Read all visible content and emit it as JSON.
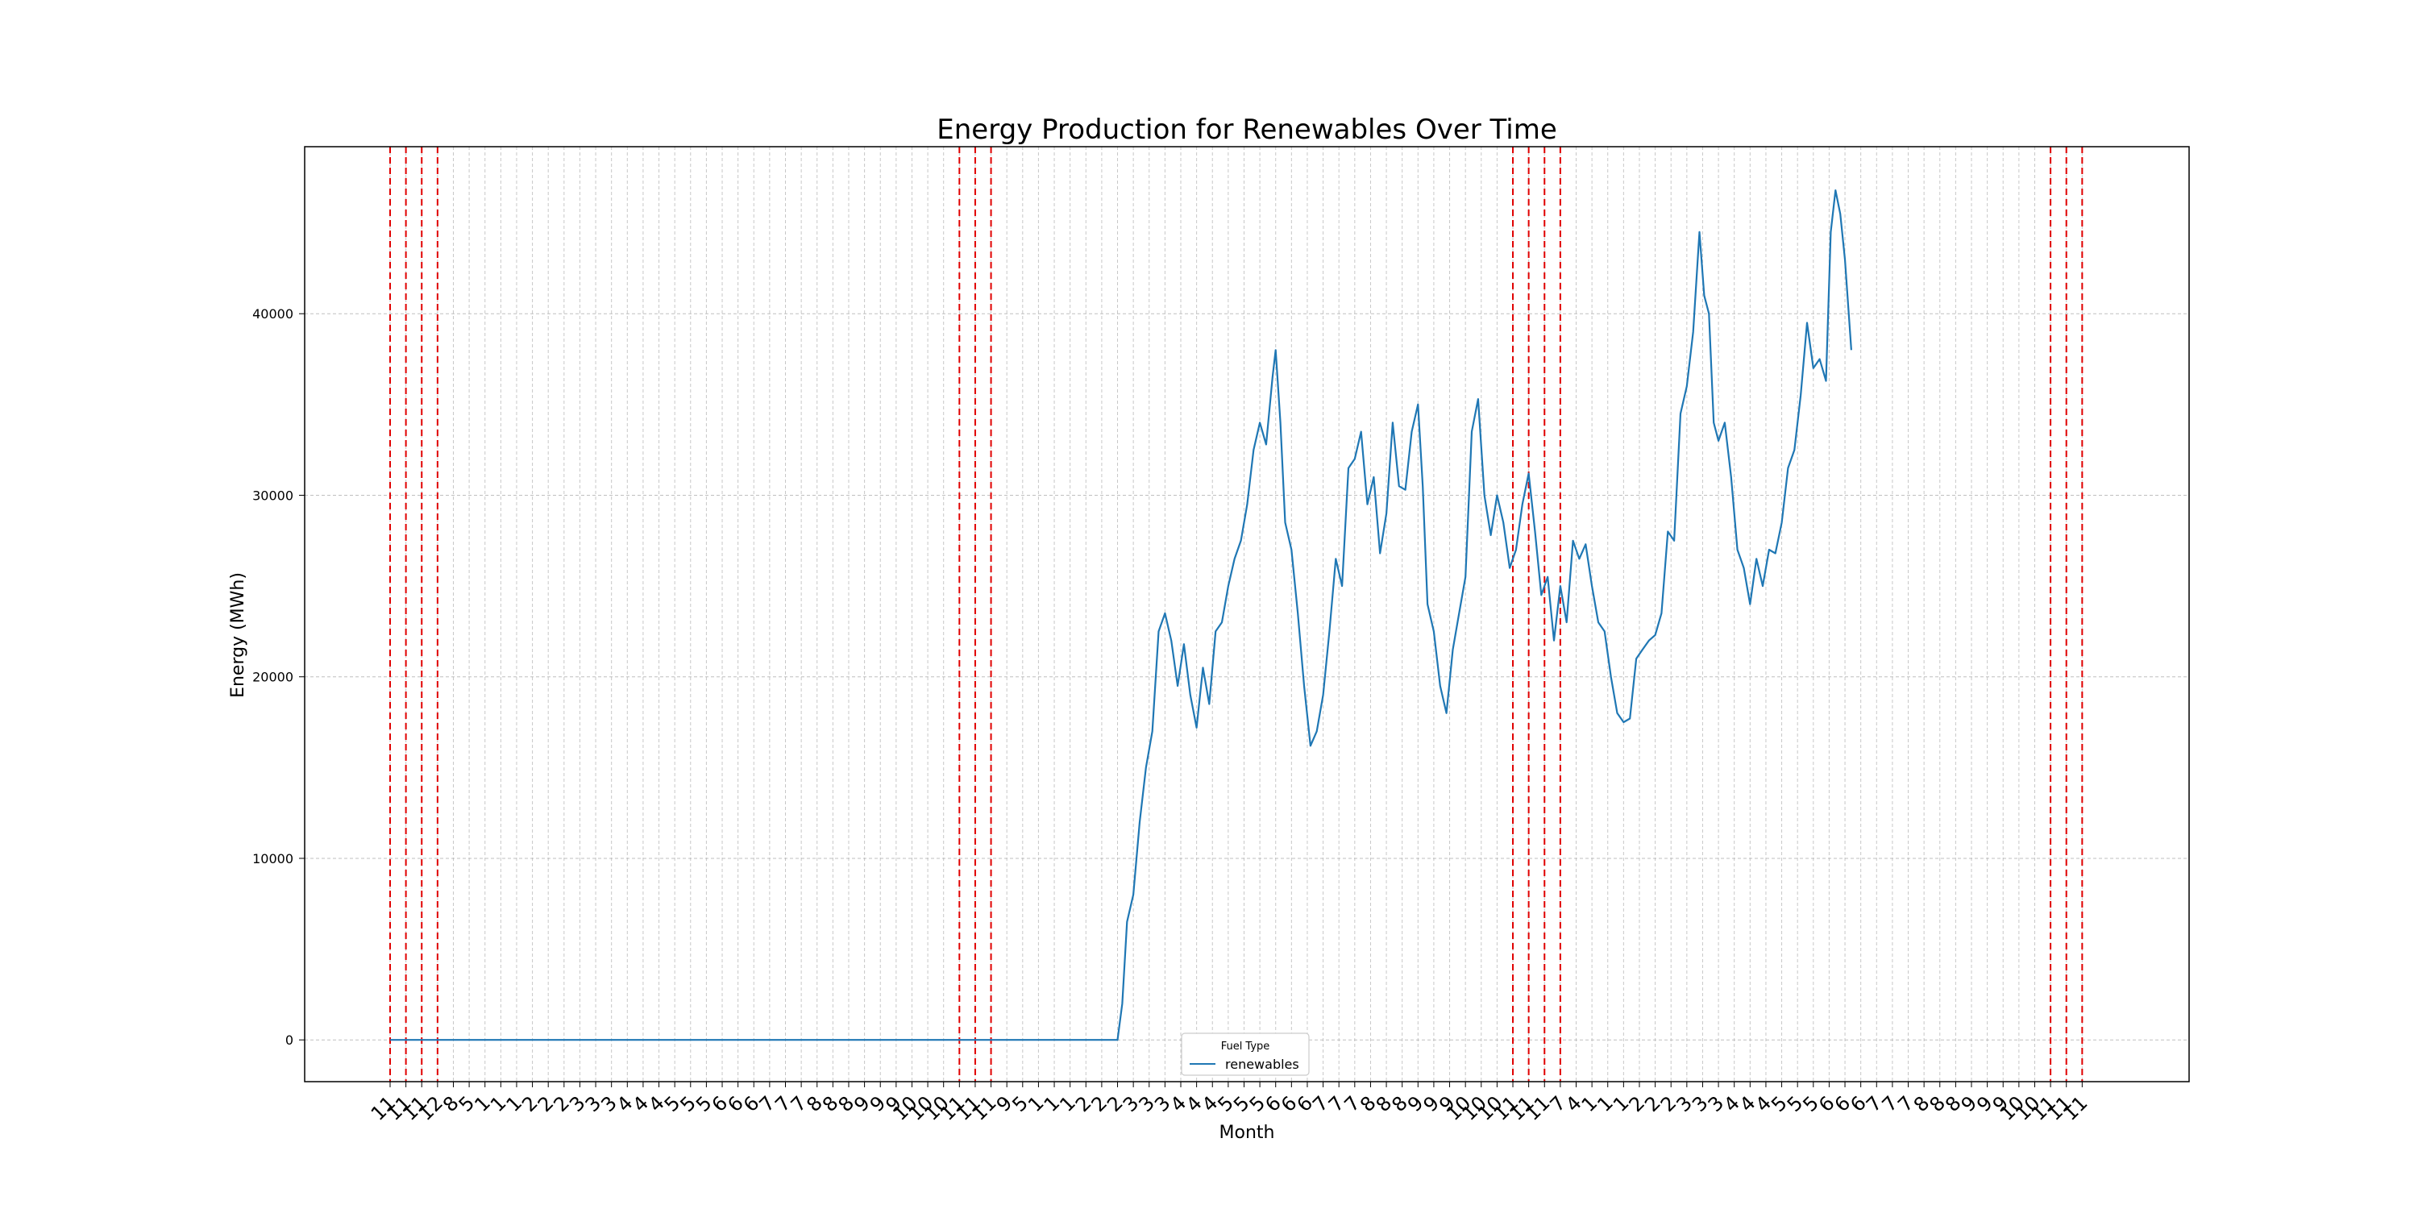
{
  "chart_data": {
    "type": "line",
    "title": "Energy Production for Renewables Over Time",
    "xlabel": "Month",
    "ylabel": "Energy (MWh)",
    "ylim": [
      -2300,
      49200
    ],
    "yticks": [
      0,
      10000,
      20000,
      30000,
      40000
    ],
    "grid": true,
    "legend": {
      "title": "Fuel Type",
      "placement": "bottom-center",
      "entries": [
        "renewables"
      ]
    },
    "xtick_labels": [
      "11",
      "11",
      "11",
      "12",
      "8",
      "5",
      "1",
      "1",
      "1",
      "2",
      "2",
      "2",
      "3",
      "3",
      "3",
      "4",
      "4",
      "4",
      "5",
      "5",
      "5",
      "6",
      "6",
      "6",
      "7",
      "7",
      "7",
      "8",
      "8",
      "8",
      "9",
      "9",
      "9",
      "10",
      "10",
      "10",
      "11",
      "11",
      "11",
      "9",
      "5",
      "1",
      "1",
      "1",
      "2",
      "2",
      "2",
      "3",
      "3",
      "3",
      "4",
      "4",
      "4",
      "5",
      "5",
      "5",
      "6",
      "6",
      "6",
      "7",
      "7",
      "7",
      "8",
      "8",
      "8",
      "9",
      "9",
      "9",
      "10",
      "10",
      "10",
      "11",
      "11",
      "11",
      "7",
      "4",
      "1",
      "1",
      "1",
      "2",
      "2",
      "2",
      "3",
      "3",
      "3",
      "4",
      "4",
      "4",
      "5",
      "5",
      "5",
      "6",
      "6",
      "6",
      "7",
      "7",
      "7",
      "8",
      "8",
      "8",
      "9",
      "9",
      "9",
      "10",
      "10",
      "11",
      "11",
      "11"
    ],
    "vertical_markers": [
      0,
      1,
      2,
      3,
      36,
      37,
      38,
      71,
      72,
      73,
      74,
      105,
      106,
      107
    ],
    "series": [
      {
        "name": "renewables",
        "color": "#1f77b4",
        "points": [
          [
            0.0,
            0
          ],
          [
            46.0,
            0
          ],
          [
            46.3,
            2000
          ],
          [
            46.6,
            6500
          ],
          [
            47.0,
            8000
          ],
          [
            47.4,
            12000
          ],
          [
            47.8,
            15000
          ],
          [
            48.2,
            17000
          ],
          [
            48.6,
            22500
          ],
          [
            49.0,
            23500
          ],
          [
            49.4,
            22000
          ],
          [
            49.8,
            19500
          ],
          [
            50.2,
            21800
          ],
          [
            50.6,
            19000
          ],
          [
            51.0,
            17200
          ],
          [
            51.4,
            20500
          ],
          [
            51.8,
            18500
          ],
          [
            52.2,
            22500
          ],
          [
            52.6,
            23000
          ],
          [
            53.0,
            25000
          ],
          [
            53.4,
            26500
          ],
          [
            53.8,
            27500
          ],
          [
            54.2,
            29500
          ],
          [
            54.6,
            32500
          ],
          [
            55.0,
            34000
          ],
          [
            55.4,
            32800
          ],
          [
            55.8,
            36500
          ],
          [
            56.0,
            38000
          ],
          [
            56.3,
            34000
          ],
          [
            56.6,
            28500
          ],
          [
            57.0,
            27000
          ],
          [
            57.4,
            23500
          ],
          [
            57.8,
            19500
          ],
          [
            58.2,
            16200
          ],
          [
            58.6,
            17000
          ],
          [
            59.0,
            19000
          ],
          [
            59.4,
            22500
          ],
          [
            59.8,
            26500
          ],
          [
            60.2,
            25000
          ],
          [
            60.6,
            31500
          ],
          [
            61.0,
            32000
          ],
          [
            61.4,
            33500
          ],
          [
            61.8,
            29500
          ],
          [
            62.2,
            31000
          ],
          [
            62.6,
            26800
          ],
          [
            63.0,
            29000
          ],
          [
            63.4,
            34000
          ],
          [
            63.8,
            30500
          ],
          [
            64.2,
            30300
          ],
          [
            64.6,
            33500
          ],
          [
            65.0,
            35000
          ],
          [
            65.3,
            30500
          ],
          [
            65.6,
            24000
          ],
          [
            66.0,
            22500
          ],
          [
            66.4,
            19500
          ],
          [
            66.8,
            18000
          ],
          [
            67.2,
            21500
          ],
          [
            67.6,
            23500
          ],
          [
            68.0,
            25500
          ],
          [
            68.4,
            33500
          ],
          [
            68.8,
            35300
          ],
          [
            69.2,
            30000
          ],
          [
            69.6,
            27800
          ],
          [
            70.0,
            30000
          ],
          [
            70.4,
            28500
          ],
          [
            70.8,
            26000
          ],
          [
            71.2,
            27000
          ],
          [
            71.6,
            29500
          ],
          [
            72.0,
            31200
          ],
          [
            72.4,
            28000
          ],
          [
            72.8,
            24500
          ],
          [
            73.2,
            25500
          ],
          [
            73.6,
            22000
          ],
          [
            74.0,
            25000
          ],
          [
            74.4,
            23000
          ],
          [
            74.8,
            27500
          ],
          [
            75.2,
            26500
          ],
          [
            75.6,
            27300
          ],
          [
            76.0,
            25000
          ],
          [
            76.4,
            23000
          ],
          [
            76.8,
            22500
          ],
          [
            77.2,
            20000
          ],
          [
            77.6,
            18000
          ],
          [
            78.0,
            17500
          ],
          [
            78.4,
            17700
          ],
          [
            78.8,
            21000
          ],
          [
            79.2,
            21500
          ],
          [
            79.6,
            22000
          ],
          [
            80.0,
            22300
          ],
          [
            80.4,
            23500
          ],
          [
            80.8,
            28000
          ],
          [
            81.2,
            27500
          ],
          [
            81.6,
            34500
          ],
          [
            82.0,
            36000
          ],
          [
            82.4,
            39000
          ],
          [
            82.8,
            44500
          ],
          [
            83.1,
            41000
          ],
          [
            83.4,
            40000
          ],
          [
            83.7,
            34000
          ],
          [
            84.0,
            33000
          ],
          [
            84.4,
            34000
          ],
          [
            84.8,
            31000
          ],
          [
            85.2,
            27000
          ],
          [
            85.6,
            26000
          ],
          [
            86.0,
            24000
          ],
          [
            86.4,
            26500
          ],
          [
            86.8,
            25000
          ],
          [
            87.2,
            27000
          ],
          [
            87.6,
            26800
          ],
          [
            88.0,
            28500
          ],
          [
            88.4,
            31500
          ],
          [
            88.8,
            32500
          ],
          [
            89.2,
            35500
          ],
          [
            89.6,
            39500
          ],
          [
            90.0,
            37000
          ],
          [
            90.4,
            37500
          ],
          [
            90.8,
            36300
          ],
          [
            91.1,
            44500
          ],
          [
            91.4,
            46800
          ],
          [
            91.7,
            45500
          ],
          [
            92.0,
            43000
          ],
          [
            92.4,
            38000
          ]
        ]
      }
    ]
  }
}
